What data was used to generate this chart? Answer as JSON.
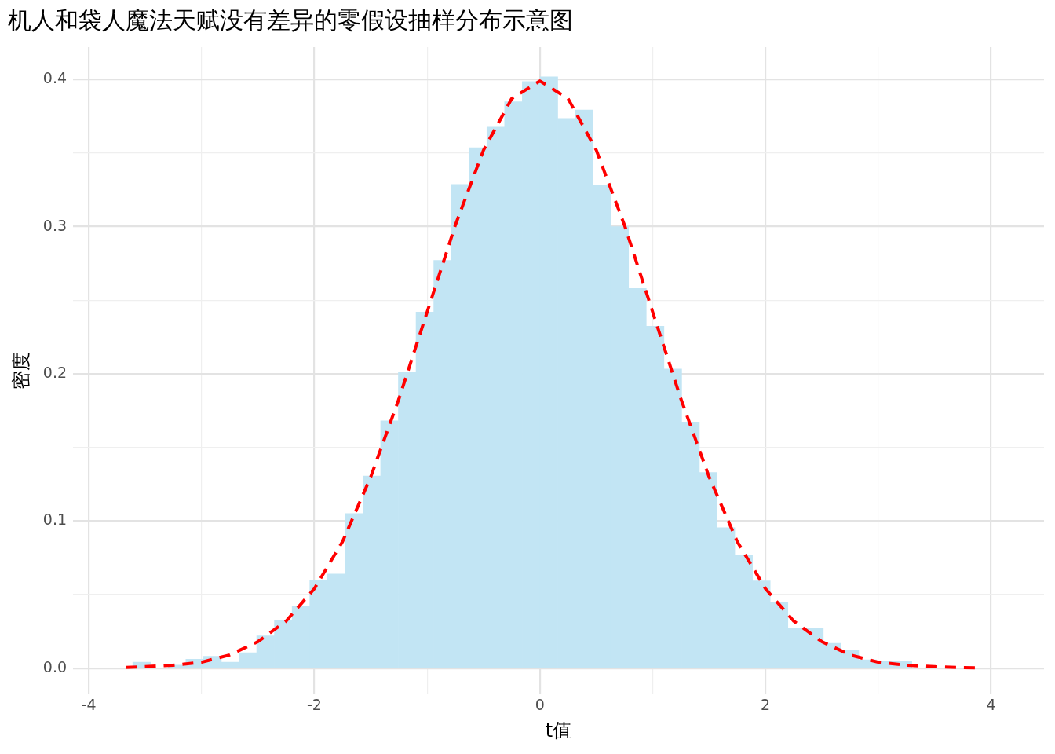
{
  "chart_data": {
    "type": "histogram",
    "title": "机人和袋人魔法天赋没有差异的零假设抽样分布示意图",
    "xlabel": "t值",
    "ylabel": "密度",
    "bins": [
      -3.61,
      -3.453,
      -3.296,
      -3.139,
      -2.982,
      -2.825,
      -2.668,
      -2.511,
      -2.354,
      -2.197,
      -2.04,
      -1.883,
      -1.726,
      -1.569,
      -1.412,
      -1.255,
      -1.098,
      -0.941,
      -0.784,
      -0.627,
      -0.47,
      -0.313,
      -0.156,
      0.001,
      0.158,
      0.315,
      0.472,
      0.629,
      0.786,
      0.943,
      1.1,
      1.257,
      1.414,
      1.571,
      1.728,
      1.885,
      2.042,
      2.199,
      2.356,
      2.513,
      2.67,
      2.827,
      2.984,
      3.141,
      3.298,
      3.455,
      3.612,
      3.769,
      3.926,
      4.083
    ],
    "values": [
      0.004,
      null,
      0.002,
      0.006,
      0.008,
      0.004,
      0.0105,
      0.022,
      0.0326,
      0.042,
      0.06,
      0.064,
      0.105,
      0.1306,
      0.168,
      0.201,
      0.242,
      0.277,
      0.3287,
      0.3537,
      0.3677,
      0.3849,
      0.3986,
      0.4018,
      0.3735,
      0.3793,
      0.328,
      0.3,
      0.258,
      0.2323,
      0.2033,
      0.1672,
      0.1329,
      0.0954,
      0.0767,
      0.0593,
      0.0446,
      0.0272,
      0.0272,
      0.0169,
      0.0125,
      0.0056,
      0.0044,
      0.0044,
      null,
      null,
      0,
      0,
      null
    ],
    "color": "#c2e5f4",
    "series": [
      {
        "type": "line",
        "color": "#ff0000",
        "line_style": "dashed",
        "marker": "none",
        "x": [
          -3.67,
          -3.5,
          -3.25,
          -3,
          -2.75,
          -2.5,
          -2.25,
          -2,
          -1.75,
          -1.5,
          -1.25,
          -1,
          -0.75,
          -0.5,
          -0.25,
          0,
          0.25,
          0.5,
          0.75,
          1,
          1.25,
          1.5,
          1.75,
          2,
          2.25,
          2.5,
          2.75,
          3,
          3.25,
          3.5,
          3.75,
          3.91
        ],
        "values": [
          0.0005,
          0.001,
          0.002,
          0.004,
          0.009,
          0.018,
          0.032,
          0.054,
          0.086,
          0.13,
          0.183,
          0.242,
          0.301,
          0.352,
          0.387,
          0.399,
          0.387,
          0.352,
          0.301,
          0.242,
          0.183,
          0.13,
          0.086,
          0.054,
          0.032,
          0.018,
          0.009,
          0.004,
          0.002,
          0.001,
          0.0004,
          0.0002
        ]
      }
    ],
    "xlim": [
      -4.14,
      4.47
    ],
    "ylim": [
      -0.018,
      0.422
    ],
    "xticks": [
      -4,
      {
        "value": -3,
        "label": null
      },
      -2,
      {
        "value": -1,
        "label": null
      },
      0,
      {
        "value": 1,
        "label": null
      },
      2,
      {
        "value": 3,
        "label": null
      },
      4
    ],
    "yticks": [
      {
        "value": 0,
        "label": "0.0"
      },
      {
        "value": 0.05,
        "label": null
      },
      {
        "value": 0.1,
        "label": "0.1"
      },
      {
        "value": 0.15,
        "label": null
      },
      {
        "value": 0.2,
        "label": "0.2"
      },
      {
        "value": 0.25,
        "label": null
      },
      {
        "value": 0.3,
        "label": "0.3"
      },
      {
        "value": 0.35,
        "label": null
      },
      {
        "value": 0.4,
        "label": "0.4"
      }
    ],
    "grid": true,
    "legend": false
  }
}
